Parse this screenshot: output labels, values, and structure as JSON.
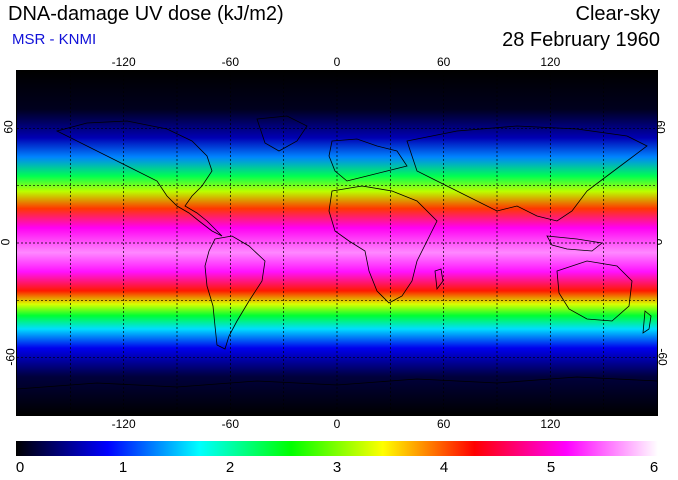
{
  "header": {
    "title": "DNA-damage UV dose (kJ/m2)",
    "subtitle": "MSR - KNMI",
    "condition": "Clear-sky",
    "date": "28 February 1960"
  },
  "map": {
    "lon_ticks": [
      "-120",
      "-60",
      "0",
      "60",
      "120"
    ],
    "lat_ticks": [
      "60",
      "0",
      "-60"
    ],
    "lon_values": [
      -120,
      -60,
      0,
      60,
      120
    ],
    "lat_values": [
      60,
      0,
      -60
    ],
    "lon_range": [
      -180,
      180
    ],
    "lat_range": [
      -90,
      90
    ],
    "grid": "dashed every 30 degrees",
    "band_profile": [
      {
        "lat": 90,
        "dose": 0
      },
      {
        "lat": 70,
        "dose": 0.1
      },
      {
        "lat": 55,
        "dose": 0.6
      },
      {
        "lat": 45,
        "dose": 1.3
      },
      {
        "lat": 35,
        "dose": 2.3
      },
      {
        "lat": 27,
        "dose": 3.2
      },
      {
        "lat": 18,
        "dose": 4.1
      },
      {
        "lat": 8,
        "dose": 5.1
      },
      {
        "lat": -5,
        "dose": 5.6
      },
      {
        "lat": -15,
        "dose": 5.2
      },
      {
        "lat": -25,
        "dose": 4.2
      },
      {
        "lat": -32,
        "dose": 3.3
      },
      {
        "lat": -38,
        "dose": 2.4
      },
      {
        "lat": -45,
        "dose": 1.6
      },
      {
        "lat": -55,
        "dose": 0.8
      },
      {
        "lat": -70,
        "dose": 0.2
      },
      {
        "lat": -90,
        "dose": 0
      }
    ]
  },
  "colorbar": {
    "labels": [
      "0",
      "1",
      "2",
      "3",
      "4",
      "5",
      "6"
    ],
    "range": [
      0,
      6
    ],
    "colors": [
      "#000000",
      "#0000ff",
      "#00ffff",
      "#00ff00",
      "#ffff00",
      "#ff0000",
      "#ff00ff",
      "#ffffff"
    ]
  }
}
